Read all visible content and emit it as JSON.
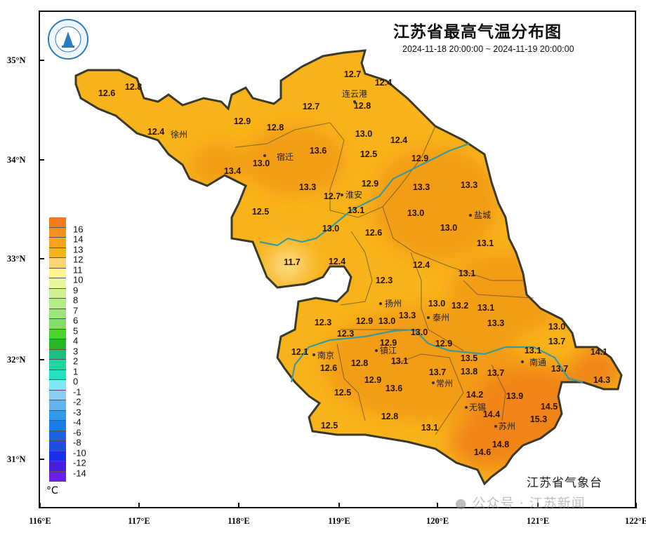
{
  "header": {
    "title": "江苏省最高气温分布图",
    "time_range": "2024-11-18 20:00:00 ~ 2024-11-19 20:00:00"
  },
  "axes": {
    "lat_ticks": [
      "35°N",
      "34°N",
      "33°N",
      "32°N",
      "31°N"
    ],
    "lon_ticks": [
      "116°E",
      "117°E",
      "118°E",
      "119°E",
      "120°E",
      "121°E",
      "122°E"
    ]
  },
  "legend": {
    "unit": "°C",
    "labels": [
      "16",
      "14",
      "13",
      "12",
      "11",
      "10",
      "9",
      "8",
      "7",
      "6",
      "5",
      "4",
      "3",
      "2",
      "1",
      "0",
      "-1",
      "-2",
      "-3",
      "-4",
      "-6",
      "-8",
      "-10",
      "-12",
      "-14"
    ],
    "colors": [
      "#f47a1a",
      "#f5901a",
      "#f7a41c",
      "#f8b31a",
      "#fbd576",
      "#fdf58f",
      "#e8f6a0",
      "#cdf092",
      "#b3ec85",
      "#9be57a",
      "#7fdf66",
      "#48d42a",
      "#27b82a",
      "#1dc07e",
      "#1fd6a0",
      "#24e0c4",
      "#7fe7f6",
      "#8ccdf3",
      "#63b3ef",
      "#2a9bf0",
      "#1b7de8",
      "#1a62e4",
      "#1c4fe0",
      "#1630e8",
      "#4a1ee0",
      "#6a1ee6"
    ]
  },
  "map": {
    "fill_colors": {
      "base": "#f8b31a",
      "warm": "#f39c12",
      "hot": "#f08418",
      "cool": "#fbd77a",
      "river": "#3a9a9a",
      "border": "#3a3a2a"
    },
    "cities": [
      "徐州",
      "宿迁",
      "连云港",
      "淮安",
      "盐城",
      "扬州",
      "泰州",
      "南京",
      "镇江",
      "常州",
      "无锡",
      "苏州",
      "南通"
    ],
    "values": [
      "12.6",
      "12.8",
      "12.4",
      "12.9",
      "12.8",
      "12.7",
      "12.7",
      "12.4",
      "12.8",
      "13.0",
      "12.5",
      "12.4",
      "13.6",
      "13.0",
      "13.4",
      "13.3",
      "12.9",
      "12.9",
      "12.7",
      "13.1",
      "12.5",
      "13.3",
      "13.3",
      "13.0",
      "13.0",
      "13.0",
      "12.6",
      "13.1",
      "11.7",
      "12.4",
      "12.4",
      "13.1",
      "12.3",
      "13.0",
      "13.2",
      "13.1",
      "13.3",
      "13.0",
      "12.9",
      "12.3",
      "12.3",
      "13.3",
      "13.0",
      "13.0",
      "12.9",
      "12.9",
      "12.1",
      "13.1",
      "13.7",
      "14.1",
      "12.8",
      "13.1",
      "13.5",
      "13.8",
      "13.7",
      "13.7",
      "13.7",
      "12.6",
      "12.9",
      "14.3",
      "13.6",
      "12.5",
      "14.2",
      "13.9",
      "14.5",
      "15.3",
      "14.4",
      "12.8",
      "12.5",
      "13.1",
      "14.8",
      "14.6"
    ]
  },
  "footer": {
    "agency": "江苏省气象台",
    "watermark": "公众号 · 江苏新闻"
  }
}
